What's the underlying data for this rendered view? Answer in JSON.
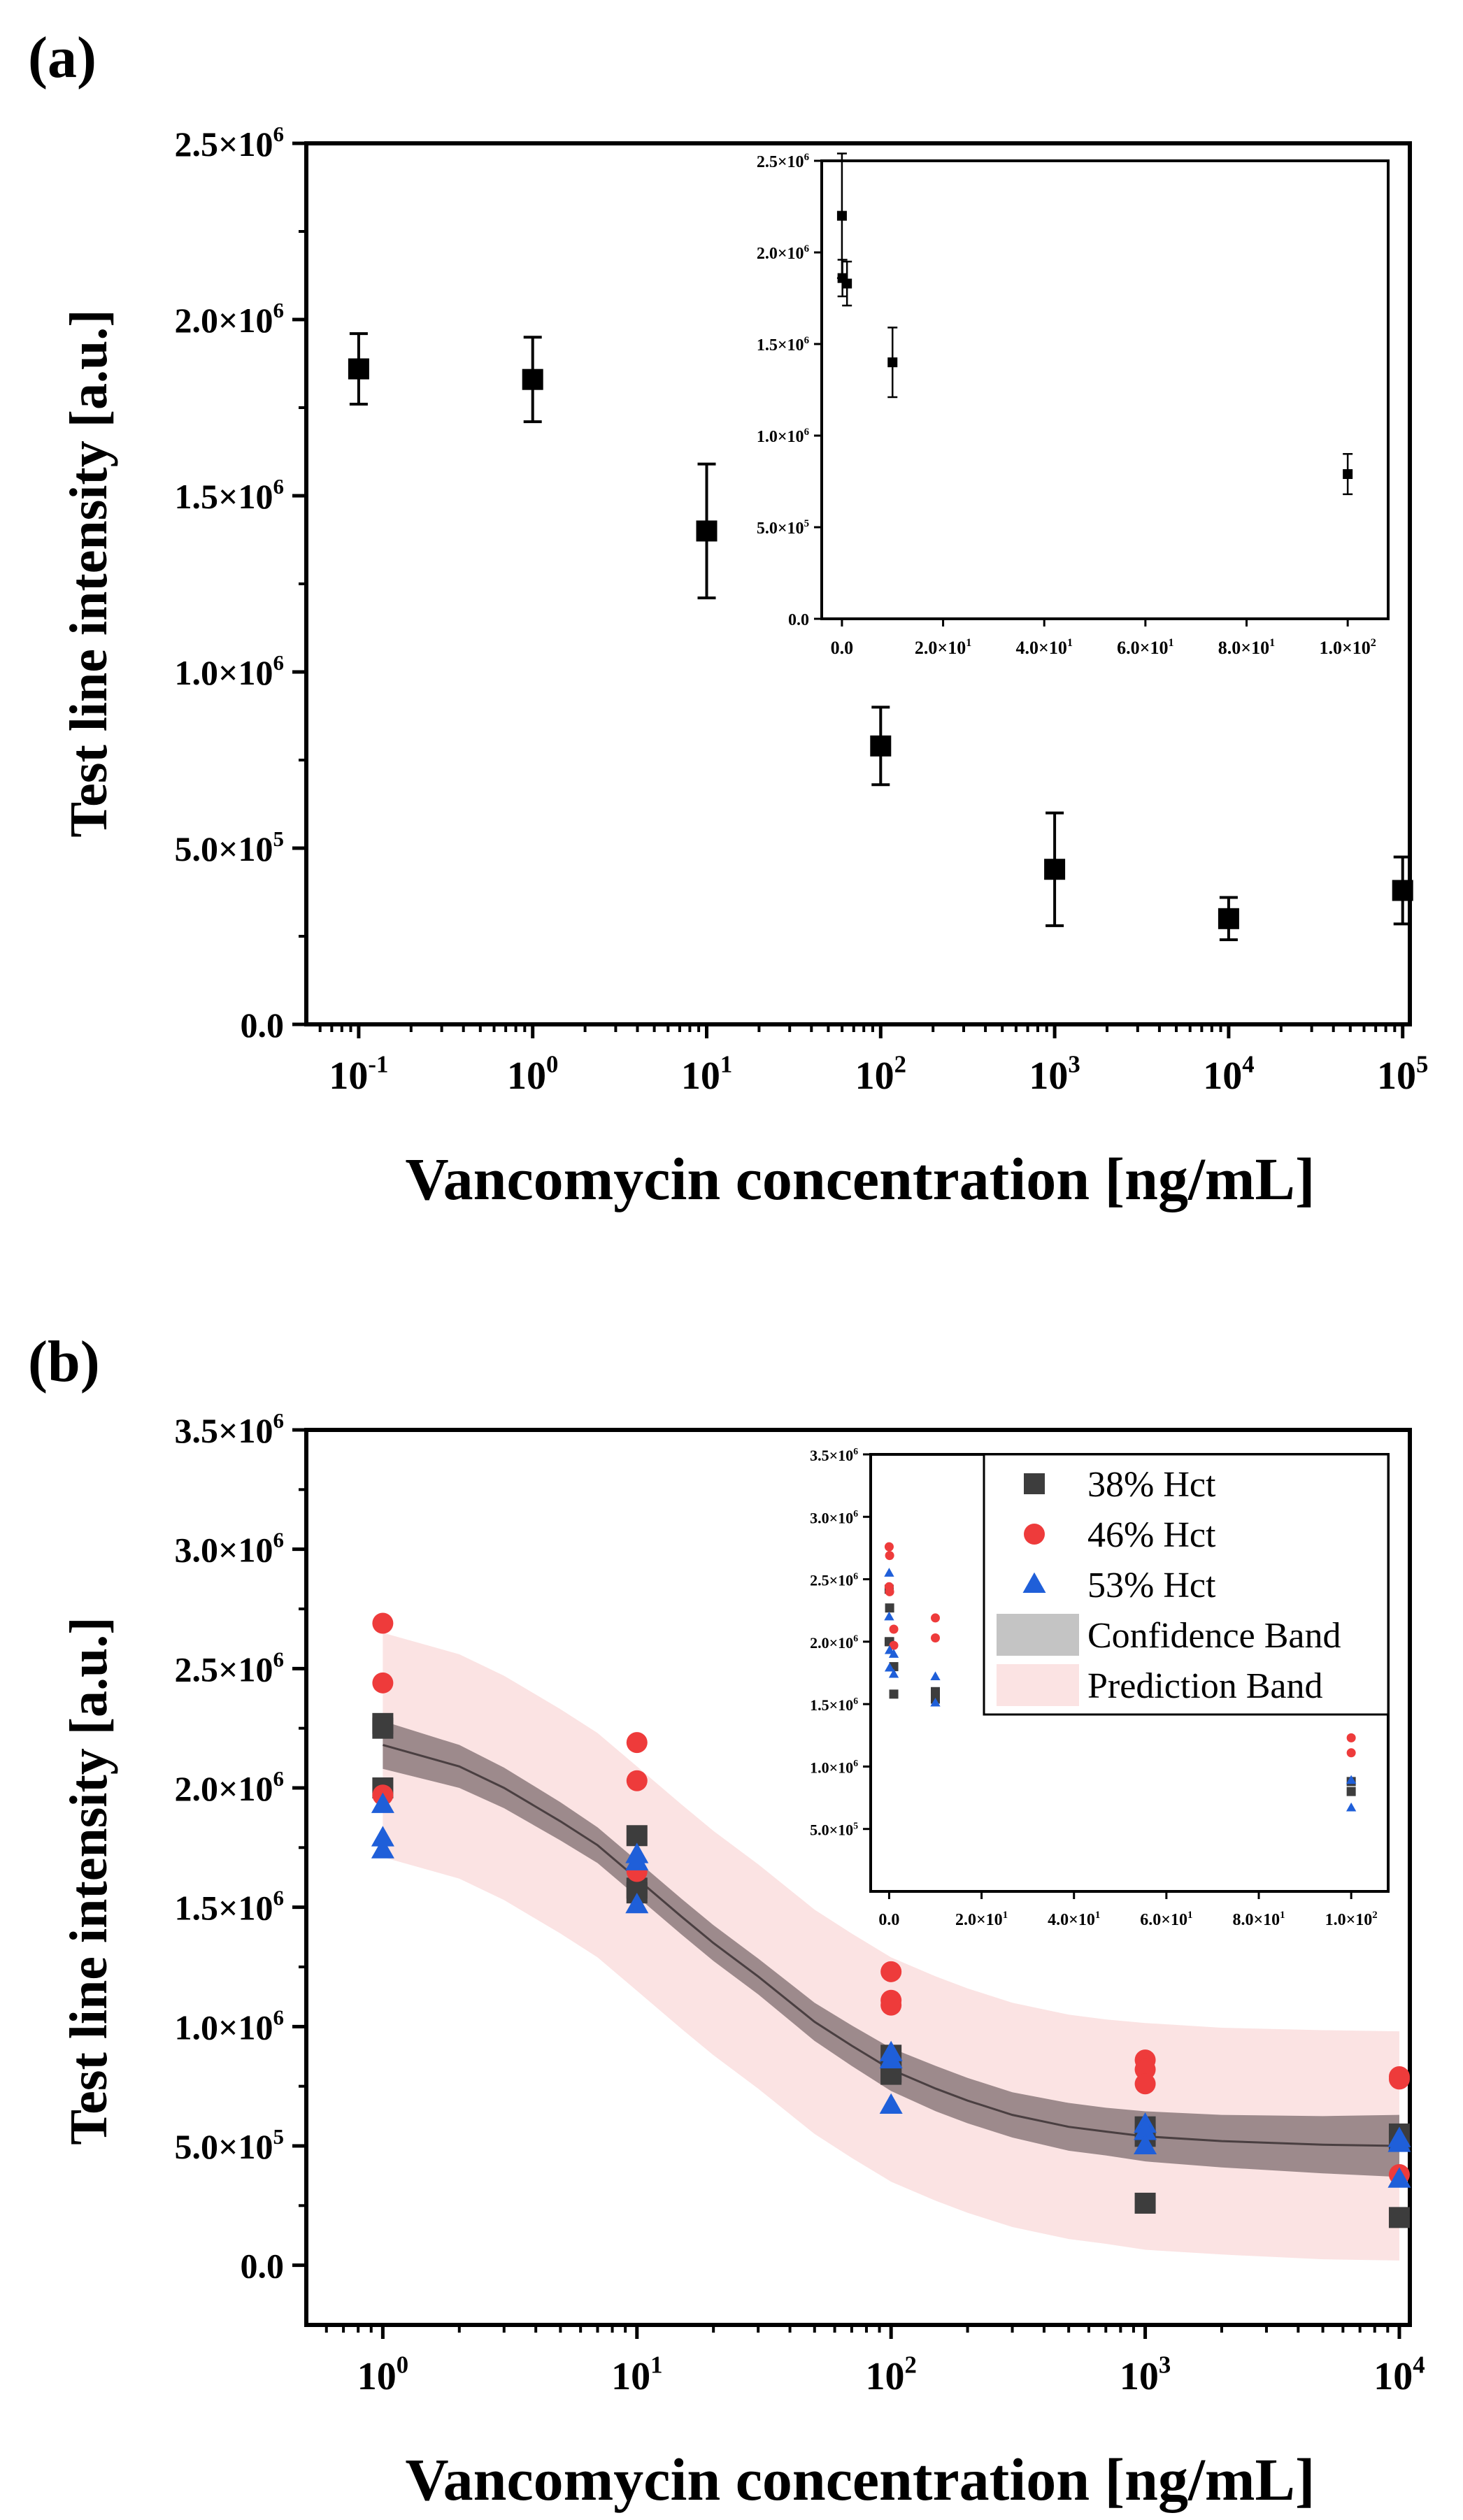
{
  "chart_data": [
    {
      "panel_label": "(a)",
      "type": "scatter",
      "x_scale": "log",
      "xlabel": "Vancomycin concentration [ng/mL]",
      "ylabel": "Test line intensity [a.u.]",
      "xlim": [
        0.05,
        110000
      ],
      "ylim": [
        0,
        2500000
      ],
      "x_tick_values": [
        0.1,
        1,
        10,
        100,
        1000,
        10000,
        100000
      ],
      "x_tick_labels": [
        {
          "base": "10",
          "exp": "-1"
        },
        {
          "base": "10",
          "exp": "0"
        },
        {
          "base": "10",
          "exp": "1"
        },
        {
          "base": "10",
          "exp": "2"
        },
        {
          "base": "10",
          "exp": "3"
        },
        {
          "base": "10",
          "exp": "4"
        },
        {
          "base": "10",
          "exp": "5"
        }
      ],
      "y_tick_values": [
        0,
        500000,
        1000000,
        1500000,
        2000000,
        2500000
      ],
      "y_tick_labels": [
        {
          "base": "0.0",
          "exp": ""
        },
        {
          "base": "5.0×10",
          "exp": "5"
        },
        {
          "base": "1.0×10",
          "exp": "6"
        },
        {
          "base": "1.5×10",
          "exp": "6"
        },
        {
          "base": "2.0×10",
          "exp": "6"
        },
        {
          "base": "2.5×10",
          "exp": "6"
        }
      ],
      "series": [
        {
          "marker": "square",
          "color": "#000000",
          "x": [
            0.1,
            1,
            10,
            100,
            1000,
            10000,
            100000
          ],
          "y": [
            1860000,
            1830000,
            1400000,
            790000,
            440000,
            300000,
            380000
          ],
          "err": [
            100000,
            120000,
            190000,
            110000,
            160000,
            60000,
            95000
          ]
        }
      ],
      "inset": {
        "type": "scatter",
        "x_scale": "linear",
        "xlim": [
          -4,
          108
        ],
        "ylim": [
          0,
          2500000
        ],
        "x_tick_values": [
          0,
          20,
          40,
          60,
          80,
          100
        ],
        "x_tick_labels": [
          {
            "base": "0.0",
            "exp": ""
          },
          {
            "base": "2.0×10",
            "exp": "1"
          },
          {
            "base": "4.0×10",
            "exp": "1"
          },
          {
            "base": "6.0×10",
            "exp": "1"
          },
          {
            "base": "8.0×10",
            "exp": "1"
          },
          {
            "base": "1.0×10",
            "exp": "2"
          }
        ],
        "y_tick_values": [
          0,
          500000,
          1000000,
          1500000,
          2000000,
          2500000
        ],
        "y_tick_labels": [
          {
            "base": "0.0",
            "exp": ""
          },
          {
            "base": "5.0×10",
            "exp": "5"
          },
          {
            "base": "1.0×10",
            "exp": "6"
          },
          {
            "base": "1.5×10",
            "exp": "6"
          },
          {
            "base": "2.0×10",
            "exp": "6"
          },
          {
            "base": "2.5×10",
            "exp": "6"
          }
        ],
        "x": [
          0,
          0.1,
          1,
          10,
          100
        ],
        "y": [
          2200000,
          1860000,
          1830000,
          1400000,
          790000
        ],
        "err": [
          340000,
          100000,
          120000,
          190000,
          110000
        ]
      }
    },
    {
      "panel_label": "(b)",
      "type": "scatter",
      "x_scale": "log",
      "xlabel": "Vancomycin concentration [ng/mL]",
      "ylabel": "Test line intensity [a.u.]",
      "xlim": [
        0.5,
        11000
      ],
      "ylim": [
        -250000,
        3500000
      ],
      "x_tick_values": [
        1,
        10,
        100,
        1000,
        10000
      ],
      "x_tick_labels": [
        {
          "base": "10",
          "exp": "0"
        },
        {
          "base": "10",
          "exp": "1"
        },
        {
          "base": "10",
          "exp": "2"
        },
        {
          "base": "10",
          "exp": "3"
        },
        {
          "base": "10",
          "exp": "4"
        }
      ],
      "y_tick_values": [
        0,
        500000,
        1000000,
        1500000,
        2000000,
        2500000,
        3000000,
        3500000
      ],
      "y_tick_labels": [
        {
          "base": "0.0",
          "exp": ""
        },
        {
          "base": "5.0×10",
          "exp": "5"
        },
        {
          "base": "1.0×10",
          "exp": "6"
        },
        {
          "base": "1.5×10",
          "exp": "6"
        },
        {
          "base": "2.0×10",
          "exp": "6"
        },
        {
          "base": "2.5×10",
          "exp": "6"
        },
        {
          "base": "3.0×10",
          "exp": "6"
        },
        {
          "base": "3.5×10",
          "exp": "6"
        }
      ],
      "fit": {
        "x": [
          1,
          2,
          3,
          5,
          7,
          10,
          15,
          20,
          30,
          50,
          70,
          100,
          150,
          200,
          300,
          500,
          700,
          1000,
          2000,
          5000,
          10000
        ],
        "y": [
          2180000,
          2090000,
          2000000,
          1860000,
          1760000,
          1620000,
          1460000,
          1350000,
          1210000,
          1020000,
          920000,
          820000,
          740000,
          690000,
          630000,
          580000,
          560000,
          540000,
          520000,
          505000,
          500000
        ],
        "confidence_halfwidth": [
          100000,
          90000,
          85000,
          80000,
          75000,
          75000,
          75000,
          75000,
          75000,
          80000,
          85000,
          90000,
          95000,
          95000,
          95000,
          100000,
          100000,
          105000,
          110000,
          120000,
          130000
        ],
        "prediction_halfwidth": [
          470000,
          470000,
          470000,
          470000,
          470000,
          470000,
          470000,
          470000,
          470000,
          470000,
          470000,
          470000,
          470000,
          470000,
          470000,
          470000,
          470000,
          475000,
          475000,
          480000,
          480000
        ]
      },
      "series": [
        {
          "name": "38% Hct",
          "marker": "square",
          "color": "#3d3d3d",
          "x": [
            1,
            1,
            1,
            10,
            10,
            10,
            100,
            100,
            100,
            1000,
            1000,
            1000,
            10000,
            10000,
            10000
          ],
          "y": [
            2270000,
            2250000,
            2000000,
            1800000,
            1580000,
            1560000,
            880000,
            810000,
            800000,
            580000,
            540000,
            260000,
            550000,
            520000,
            200000
          ]
        },
        {
          "name": "46% Hct",
          "marker": "circle",
          "color": "#ee3b3b",
          "x": [
            1,
            1,
            1,
            10,
            10,
            10,
            100,
            100,
            100,
            1000,
            1000,
            1000,
            10000,
            10000,
            10000
          ],
          "y": [
            2690000,
            2440000,
            1970000,
            2190000,
            2030000,
            1650000,
            1230000,
            1110000,
            1090000,
            860000,
            820000,
            760000,
            790000,
            780000,
            380000
          ]
        },
        {
          "name": "53% Hct",
          "marker": "triangle",
          "color": "#1f5fd9",
          "x": [
            1,
            1,
            1,
            10,
            10,
            10,
            100,
            100,
            100,
            1000,
            1000,
            1000,
            10000,
            10000,
            10000
          ],
          "y": [
            1930000,
            1790000,
            1740000,
            1720000,
            1690000,
            1510000,
            890000,
            860000,
            670000,
            590000,
            560000,
            500000,
            530000,
            510000,
            360000
          ]
        }
      ],
      "legend": {
        "placement": "top-right",
        "entries": [
          "38% Hct",
          "46% Hct",
          "53% Hct",
          "Confidence Band",
          "Prediction Band"
        ]
      },
      "band_colors": {
        "confidence": "#8c7a7d",
        "prediction": "#fbe3e3",
        "legend_confidence": "#c4c4c4",
        "legend_prediction": "#fbe3e3"
      },
      "inset": {
        "type": "scatter",
        "x_scale": "linear",
        "xlim": [
          -4,
          108
        ],
        "ylim": [
          0,
          3500000
        ],
        "x_tick_values": [
          0,
          20,
          40,
          60,
          80,
          100
        ],
        "x_tick_labels": [
          {
            "base": "0.0",
            "exp": ""
          },
          {
            "base": "2.0×10",
            "exp": "1"
          },
          {
            "base": "4.0×10",
            "exp": "1"
          },
          {
            "base": "6.0×10",
            "exp": "1"
          },
          {
            "base": "8.0×10",
            "exp": "1"
          },
          {
            "base": "1.0×10",
            "exp": "2"
          }
        ],
        "y_tick_values": [
          500000,
          1000000,
          1500000,
          2000000,
          2500000,
          3000000,
          3500000
        ],
        "y_tick_labels": [
          {
            "base": "5.0×10",
            "exp": "5"
          },
          {
            "base": "1.0×10",
            "exp": "6"
          },
          {
            "base": "1.5×10",
            "exp": "6"
          },
          {
            "base": "2.0×10",
            "exp": "6"
          },
          {
            "base": "2.5×10",
            "exp": "6"
          },
          {
            "base": "3.0×10",
            "exp": "6"
          },
          {
            "base": "3.5×10",
            "exp": "6"
          }
        ],
        "series": [
          {
            "name": "38% Hct",
            "x": [
              0,
              0,
              0.1,
              0.1,
              1,
              1,
              10,
              10,
              100,
              100
            ],
            "y": [
              2420000,
              2000000,
              2270000,
              2000000,
              1800000,
              1580000,
              1600000,
              1540000,
              880000,
              800000
            ]
          },
          {
            "name": "46% Hct",
            "x": [
              0,
              0,
              0.1,
              0.1,
              1,
              1,
              10,
              10,
              100,
              100
            ],
            "y": [
              2760000,
              2440000,
              2690000,
              2400000,
              1970000,
              2100000,
              2190000,
              2030000,
              1230000,
              1110000
            ]
          },
          {
            "name": "53% Hct",
            "x": [
              0,
              0,
              0.1,
              0.1,
              1,
              1,
              10,
              10,
              100,
              100
            ],
            "y": [
              2550000,
              2200000,
              1930000,
              1790000,
              1740000,
              1900000,
              1720000,
              1510000,
              890000,
              670000
            ]
          }
        ]
      }
    }
  ]
}
